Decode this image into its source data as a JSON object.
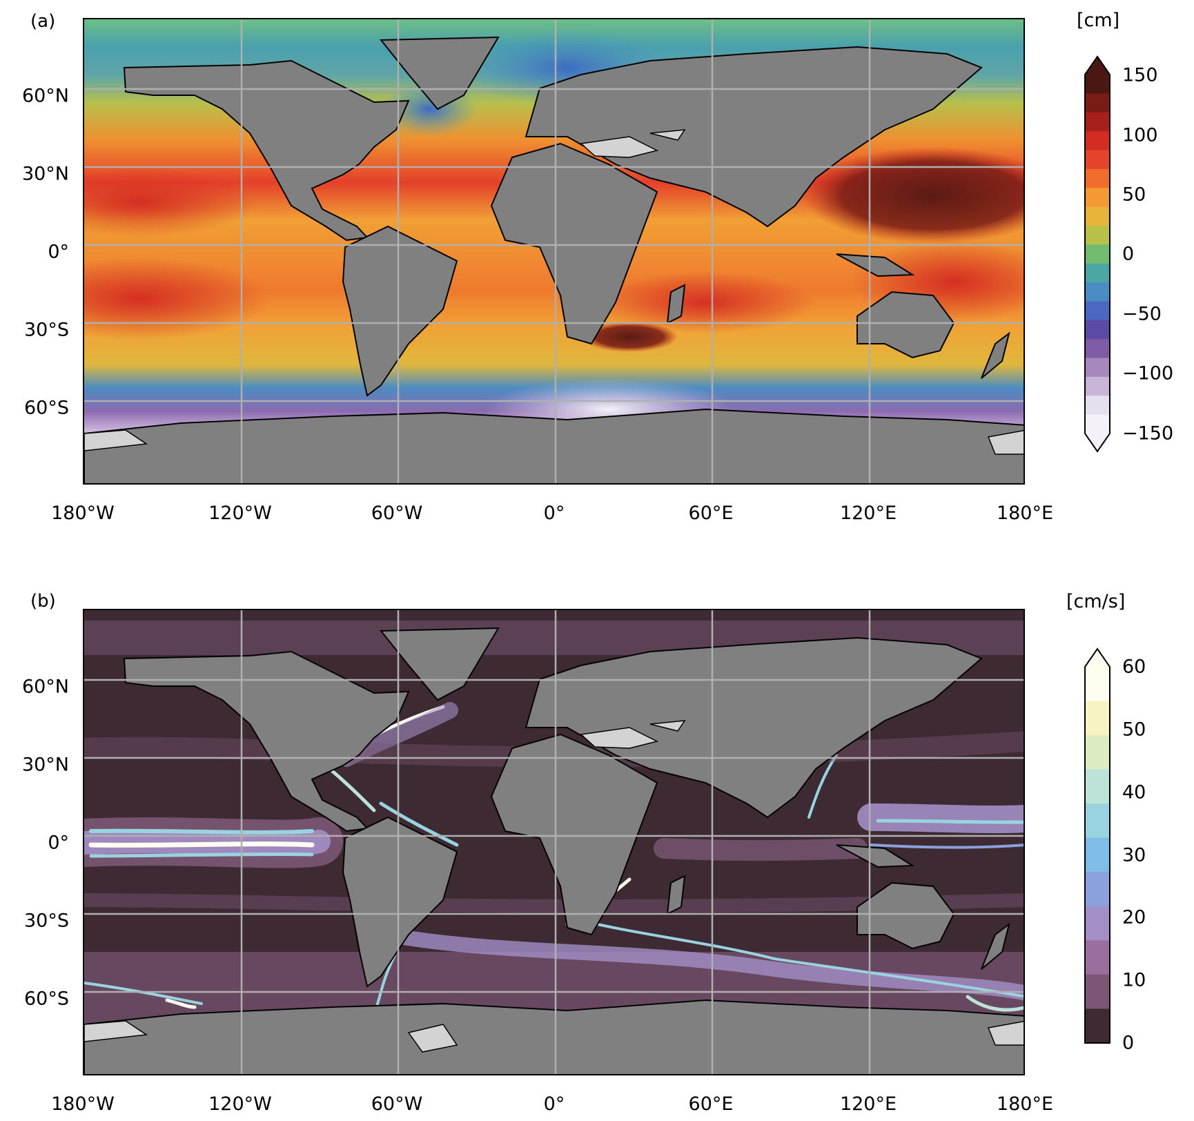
{
  "panels": [
    {
      "label": "(a)",
      "colorbar_unit": "[cm]",
      "colorbar_ticks": [
        "150",
        "100",
        "50",
        "0",
        "−50",
        "−100",
        "−150"
      ],
      "colorbar_colors": [
        "#4a1712",
        "#7a1c16",
        "#a8201c",
        "#d42b22",
        "#e3442a",
        "#ef6c2c",
        "#f49a33",
        "#e8b43a",
        "#b9c04a",
        "#74bb72",
        "#4ba7a3",
        "#4a8cc4",
        "#4b67c0",
        "#5b4aa6",
        "#7e5ba4",
        "#a688bd",
        "#c8b4d6",
        "#e6e0ee",
        "#f4f2f8"
      ],
      "extend": "both"
    },
    {
      "label": "(b)",
      "colorbar_unit": "[cm/s]",
      "colorbar_ticks": [
        "60",
        "50",
        "40",
        "30",
        "20",
        "10",
        "0"
      ],
      "colorbar_colors": [
        "#fffdef",
        "#f7f3c2",
        "#dcecc2",
        "#bde3d8",
        "#9ad3e0",
        "#7fbde6",
        "#8aa1de",
        "#a38ec7",
        "#9a6f9e",
        "#7b5674",
        "#3d2a33"
      ],
      "extend": "max"
    }
  ],
  "axes": {
    "lon_ticks": [
      "180°W",
      "120°W",
      "60°W",
      "0°",
      "60°E",
      "120°E",
      "180°E"
    ],
    "lat_ticks": [
      "60°N",
      "30°N",
      "0°",
      "30°S",
      "60°S"
    ]
  },
  "colors": {
    "land": "#808080",
    "ice": "#d3d3d3",
    "gridlines": "#b0b0b0",
    "ocean_b_base": "#3d2a33"
  }
}
